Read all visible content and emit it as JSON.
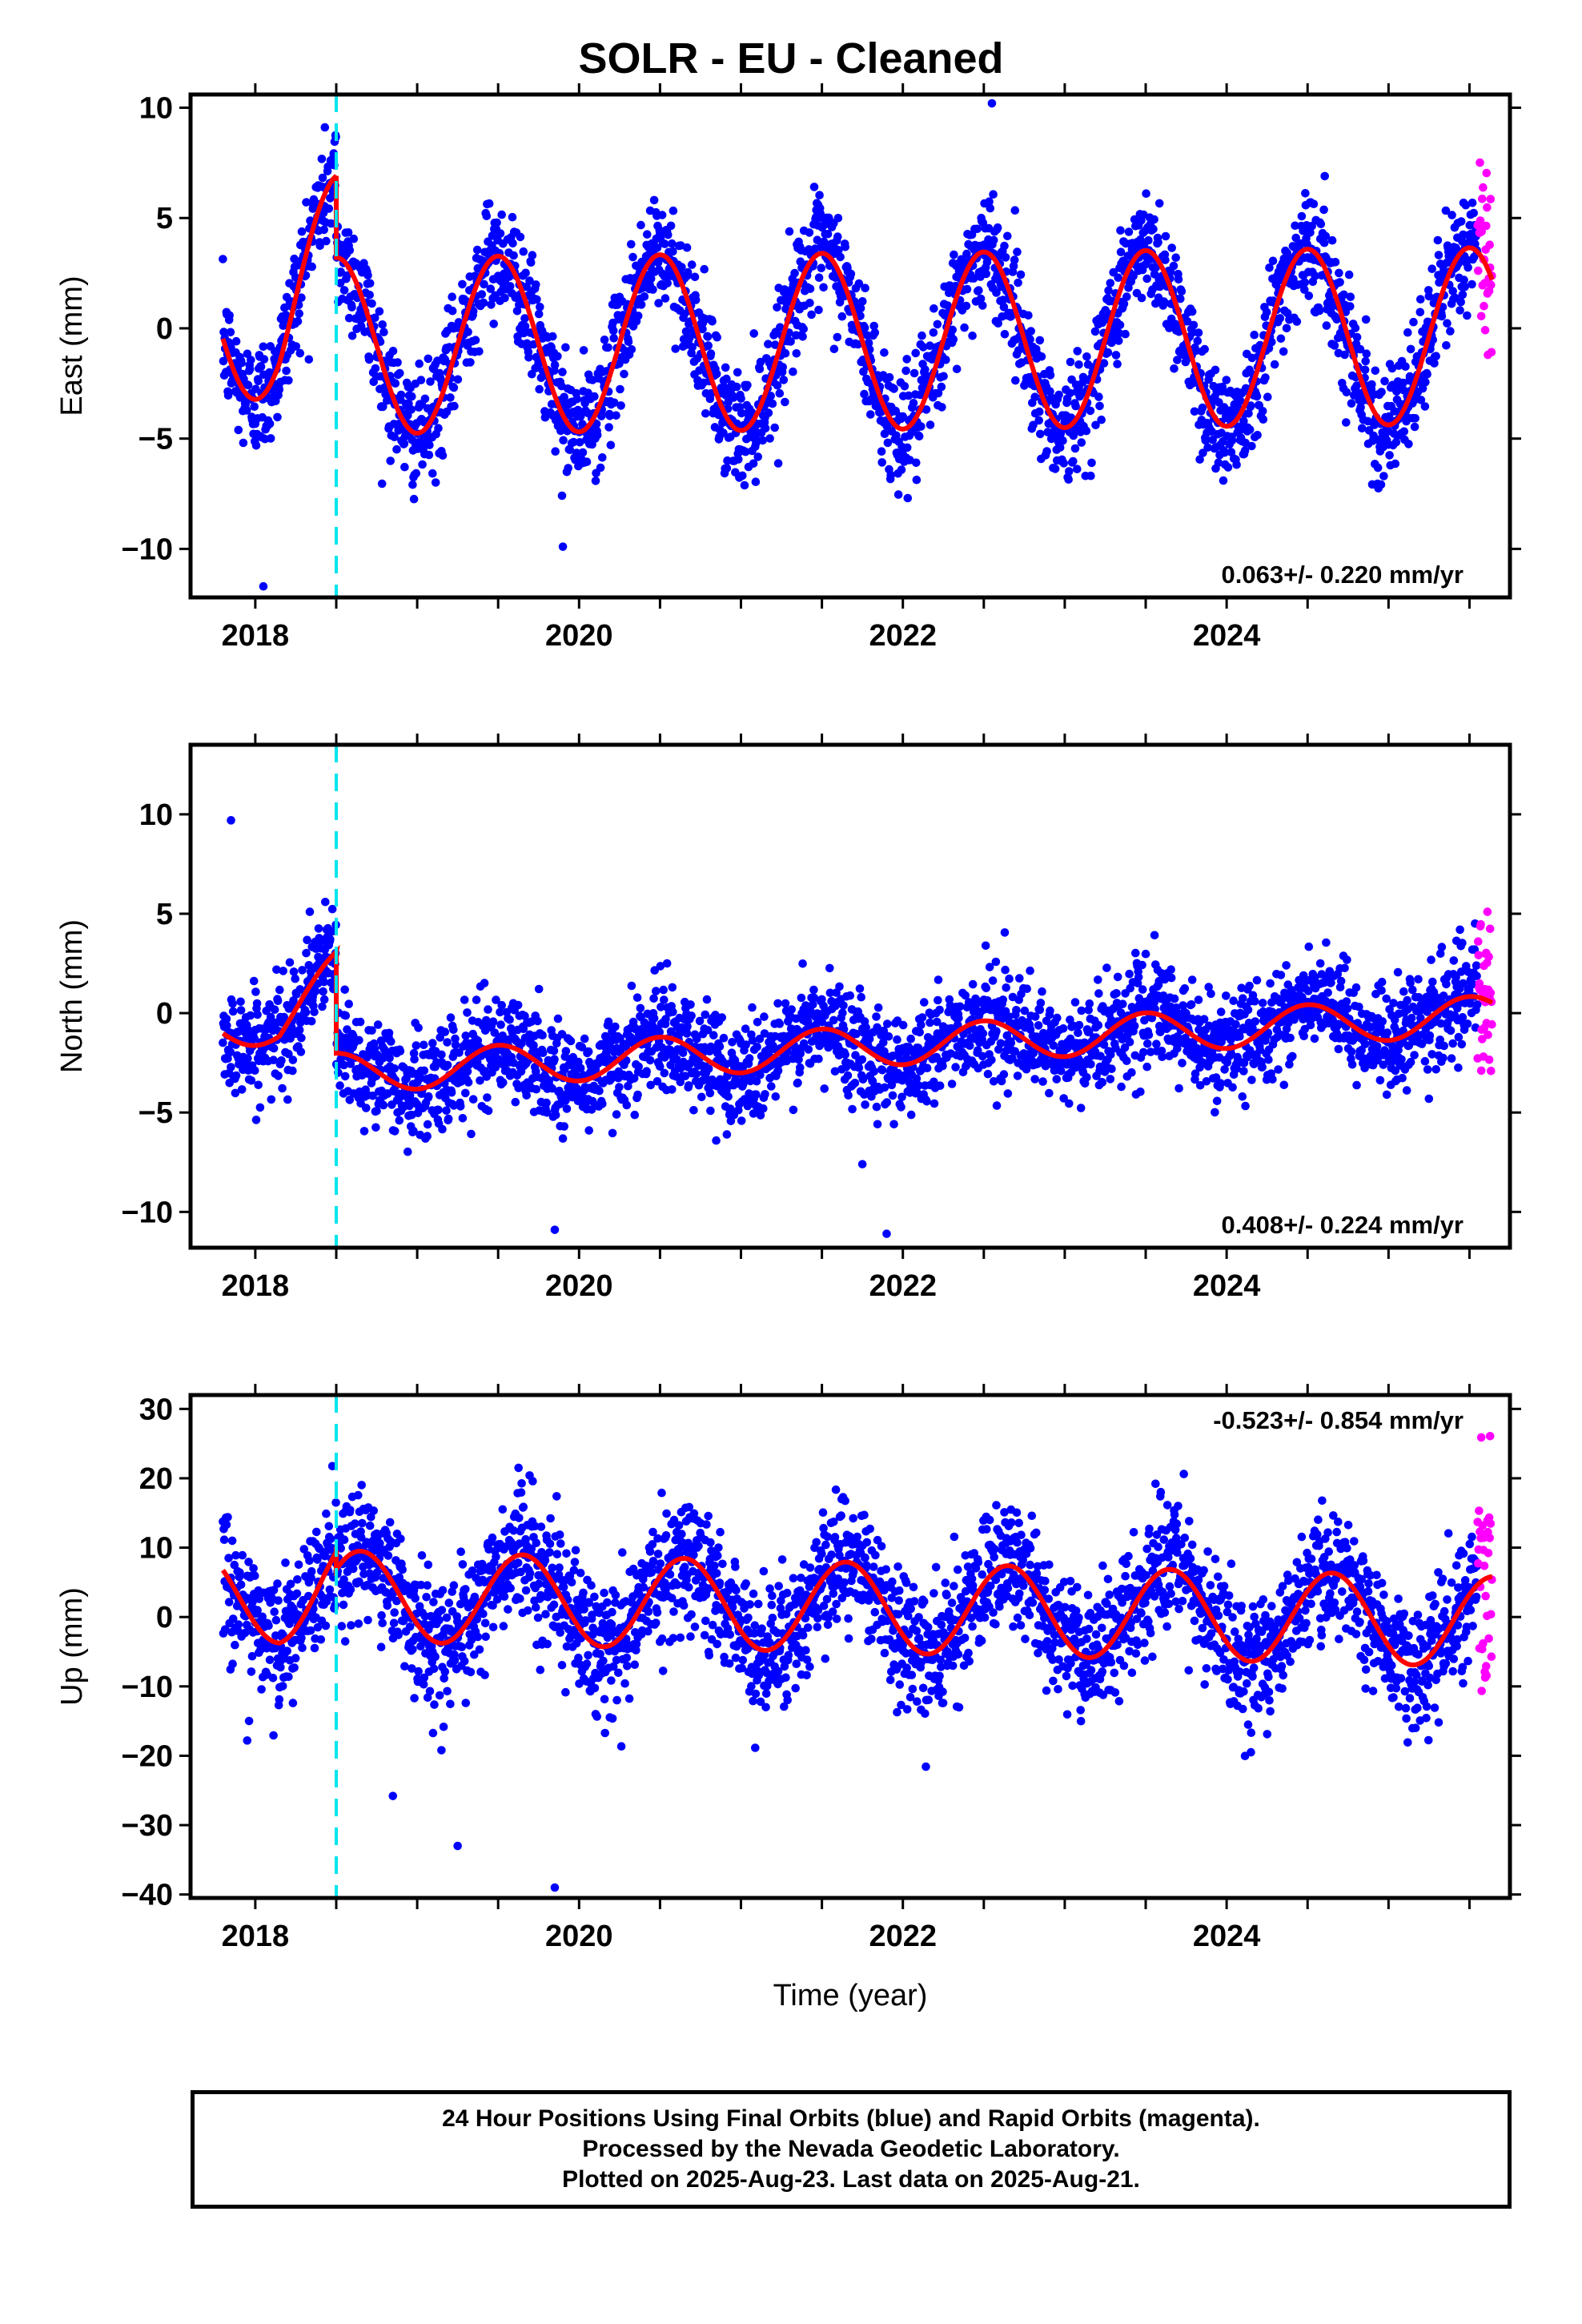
{
  "title": "SOLR  - EU - Cleaned",
  "colors": {
    "final": "#0000ff",
    "rapid": "#ff00ff",
    "model": "#ff0000",
    "offset": "#00e5ee"
  },
  "footer": {
    "line1": "24 Hour Positions Using Final Orbits (blue) and Rapid Orbits (magenta).",
    "line2": "Processed by the Nevada Geodetic Laboratory.",
    "line3": "Plotted on 2025-Aug-23. Last data on 2025-Aug-21."
  },
  "chart_data": [
    {
      "type": "scatter",
      "component": "East",
      "ylabel": "East (mm)",
      "xlabel": "",
      "xlim": [
        2017.6,
        2025.75
      ],
      "ylim": [
        -12.2,
        10.6
      ],
      "xticks": [
        2018,
        2020,
        2022,
        2024
      ],
      "yticks": [
        -10,
        -5,
        0,
        5,
        10
      ],
      "rate_label": "0.063+/- 0.220 mm/yr",
      "rate_position": "bottom-right",
      "offset_epoch": 2018.5,
      "start": 2017.8,
      "end_final": 2025.55,
      "end": 2025.64,
      "model": {
        "amplitude": 4.0,
        "peak": 2018.5,
        "pre_mean": 1.0,
        "post_mean": -0.6,
        "trend": 0.063,
        "jump": 2.1
      },
      "noise": 1.3,
      "series": [
        {
          "name": "Final Orbits",
          "marker": "dot",
          "color": "#0000ff"
        },
        {
          "name": "Rapid Orbits",
          "marker": "dot",
          "color": "#ff00ff"
        },
        {
          "name": "Model",
          "marker": "line",
          "color": "#ff0000"
        }
      ],
      "outliers": [
        [
          2018.05,
          -11.7
        ],
        [
          2019.9,
          -9.9
        ],
        [
          2022.55,
          10.2
        ]
      ]
    },
    {
      "type": "scatter",
      "component": "North",
      "ylabel": "North (mm)",
      "xlabel": "",
      "xlim": [
        2017.6,
        2025.75
      ],
      "ylim": [
        -11.8,
        13.5
      ],
      "xticks": [
        2018,
        2020,
        2022,
        2024
      ],
      "yticks": [
        -10,
        -5,
        0,
        5,
        10
      ],
      "rate_label": "0.408+/- 0.224 mm/yr",
      "rate_position": "bottom-right",
      "offset_epoch": 2018.5,
      "start": 2017.8,
      "end_final": 2025.55,
      "end": 2025.64,
      "model": {
        "amplitude": 1.0,
        "peak": 2018.5,
        "pre_mean": 0.8,
        "post_mean": -1.8,
        "trend": 0.408,
        "jump": 2.5
      },
      "noise": 1.3,
      "series": [
        {
          "name": "Final Orbits",
          "marker": "dot",
          "color": "#0000ff"
        },
        {
          "name": "Rapid Orbits",
          "marker": "dot",
          "color": "#ff00ff"
        },
        {
          "name": "Model",
          "marker": "line",
          "color": "#ff0000"
        }
      ],
      "outliers": [
        [
          2017.85,
          9.7
        ],
        [
          2019.85,
          -10.9
        ],
        [
          2021.75,
          -7.6
        ],
        [
          2021.9,
          -11.1
        ]
      ]
    },
    {
      "type": "scatter",
      "component": "Up",
      "ylabel": "Up (mm)",
      "xlabel": "Time (year)",
      "xlim": [
        2017.6,
        2025.75
      ],
      "ylim": [
        -40.5,
        32
      ],
      "xticks": [
        2018,
        2020,
        2022,
        2024
      ],
      "yticks": [
        -40,
        -30,
        -20,
        -10,
        0,
        10,
        20,
        30
      ],
      "rate_label": "-0.523+/- 0.854 mm/yr",
      "rate_position": "top-right",
      "offset_epoch": 2018.5,
      "start": 2017.8,
      "end_final": 2025.55,
      "end": 2025.64,
      "model": {
        "amplitude": 6.5,
        "peak": 2019.65,
        "pre_mean": 1.0,
        "post_mean": 1.5,
        "trend": -0.523,
        "jump": 3.0
      },
      "noise": 4.5,
      "series": [
        {
          "name": "Final Orbits",
          "marker": "dot",
          "color": "#0000ff"
        },
        {
          "name": "Rapid Orbits",
          "marker": "dot",
          "color": "#ff00ff"
        },
        {
          "name": "Model",
          "marker": "line",
          "color": "#ff0000"
        }
      ],
      "outliers": [
        [
          2017.95,
          -17.8
        ],
        [
          2018.85,
          -25.8
        ],
        [
          2019.25,
          -33.0
        ],
        [
          2019.85,
          -39.0
        ],
        [
          2024.15,
          -19.5
        ]
      ]
    }
  ]
}
